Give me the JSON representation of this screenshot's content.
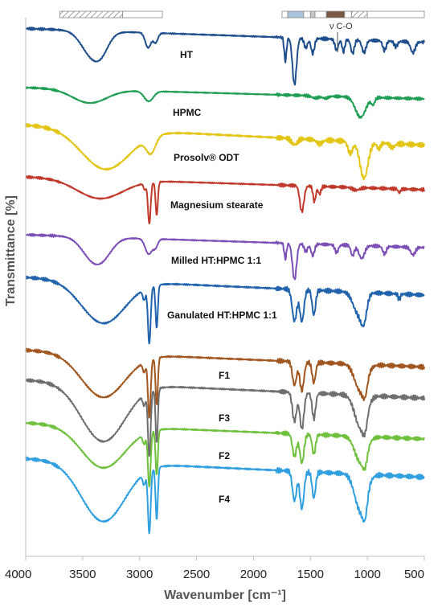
{
  "chart_data": {
    "type": "line",
    "title": "",
    "xlabel": "Wavenumber [cm⁻¹]",
    "ylabel": "Transmittance [%]",
    "xlim": [
      4000,
      500
    ],
    "x_reversed": true,
    "x_ticks": [
      "4000",
      "3500",
      "3000",
      "2500",
      "2000",
      "1500",
      "1000",
      "500"
    ],
    "grid": false,
    "legend": "labels placed next to each trace",
    "annotation": "ν C-O",
    "series": [
      {
        "name": "HT",
        "color": "#1f4e8c",
        "bands": [
          [
            3410,
            0.95,
            95
          ],
          [
            3330,
            0.3,
            60
          ],
          [
            2925,
            0.55,
            25
          ],
          [
            2860,
            0.35,
            20
          ],
          [
            1720,
            0.85,
            10
          ],
          [
            1640,
            1.7,
            18
          ],
          [
            1540,
            0.35,
            15
          ],
          [
            1480,
            0.55,
            15
          ],
          [
            1270,
            0.4,
            15
          ],
          [
            1210,
            0.45,
            12
          ],
          [
            1130,
            0.5,
            15
          ],
          [
            1030,
            0.45,
            18
          ],
          [
            850,
            0.35,
            15
          ],
          [
            750,
            0.2,
            15
          ],
          [
            600,
            0.4,
            20
          ]
        ]
      },
      {
        "name": "HPMC",
        "color": "#1e9e52",
        "bands": [
          [
            3440,
            0.6,
            150
          ],
          [
            2920,
            0.45,
            40
          ],
          [
            1460,
            0.1,
            30
          ],
          [
            1370,
            0.1,
            25
          ],
          [
            1060,
            0.9,
            45
          ],
          [
            950,
            0.3,
            15
          ]
        ]
      },
      {
        "name": "Prosolv® ODT",
        "color": "#e3c615",
        "bands": [
          [
            3300,
            1.0,
            210
          ],
          [
            2900,
            0.4,
            40
          ],
          [
            1640,
            0.15,
            25
          ],
          [
            1420,
            0.1,
            25
          ],
          [
            1150,
            0.3,
            20
          ],
          [
            1030,
            0.9,
            35
          ],
          [
            900,
            0.15,
            15
          ],
          [
            780,
            0.1,
            20
          ]
        ]
      },
      {
        "name": "Magnesium stearate",
        "color": "#c0392b",
        "bands": [
          [
            3350,
            0.75,
            200
          ],
          [
            2955,
            0.25,
            10
          ],
          [
            2915,
            1.6,
            12
          ],
          [
            2850,
            1.3,
            10
          ],
          [
            1575,
            1.0,
            18
          ],
          [
            1465,
            0.6,
            12
          ],
          [
            1420,
            0.3,
            12
          ],
          [
            1100,
            0.1,
            30
          ],
          [
            720,
            0.15,
            10
          ]
        ]
      },
      {
        "name": "Milled HT:HPMC 1:1",
        "color": "#7b4fb5",
        "bands": [
          [
            3400,
            0.9,
            100
          ],
          [
            3300,
            0.3,
            80
          ],
          [
            2920,
            0.6,
            30
          ],
          [
            2860,
            0.3,
            20
          ],
          [
            1720,
            0.6,
            10
          ],
          [
            1640,
            1.4,
            18
          ],
          [
            1540,
            0.3,
            15
          ],
          [
            1480,
            0.45,
            15
          ],
          [
            1270,
            0.3,
            15
          ],
          [
            1130,
            0.4,
            15
          ],
          [
            1050,
            0.5,
            25
          ],
          [
            850,
            0.3,
            15
          ],
          [
            600,
            0.3,
            20
          ]
        ]
      },
      {
        "name": "Ganulated HT:HPMC 1:1",
        "color": "#2062ac",
        "bands": [
          [
            3320,
            1.2,
            190
          ],
          [
            2960,
            0.3,
            12
          ],
          [
            2915,
            1.6,
            12
          ],
          [
            2850,
            1.2,
            10
          ],
          [
            1640,
            0.9,
            20
          ],
          [
            1575,
            0.9,
            18
          ],
          [
            1470,
            0.7,
            15
          ],
          [
            1080,
            0.6,
            45
          ],
          [
            1030,
            0.6,
            25
          ],
          [
            720,
            0.15,
            10
          ]
        ]
      },
      {
        "name": "F1",
        "color": "#a0561e",
        "bands": [
          [
            3320,
            1.3,
            190
          ],
          [
            2960,
            0.3,
            12
          ],
          [
            2915,
            1.7,
            12
          ],
          [
            2850,
            1.4,
            10
          ],
          [
            1640,
            0.7,
            18
          ],
          [
            1575,
            0.85,
            18
          ],
          [
            1470,
            0.6,
            15
          ],
          [
            1060,
            0.8,
            50
          ],
          [
            1020,
            0.4,
            20
          ]
        ]
      },
      {
        "name": "F3",
        "color": "#6e6e6e",
        "bands": [
          [
            3320,
            1.6,
            190
          ],
          [
            2960,
            0.3,
            12
          ],
          [
            2915,
            1.8,
            12
          ],
          [
            2850,
            1.5,
            10
          ],
          [
            1640,
            0.8,
            18
          ],
          [
            1575,
            1.0,
            18
          ],
          [
            1470,
            0.7,
            15
          ],
          [
            1060,
            0.9,
            50
          ],
          [
            1020,
            0.4,
            20
          ]
        ]
      },
      {
        "name": "F2",
        "color": "#6fc03c",
        "bands": [
          [
            3320,
            1.3,
            190
          ],
          [
            2960,
            0.3,
            12
          ],
          [
            2915,
            1.7,
            12
          ],
          [
            2850,
            1.4,
            10
          ],
          [
            1640,
            0.7,
            18
          ],
          [
            1575,
            0.9,
            18
          ],
          [
            1470,
            0.6,
            15
          ],
          [
            1060,
            0.8,
            50
          ],
          [
            1020,
            0.4,
            20
          ]
        ]
      },
      {
        "name": "F4",
        "color": "#2f9fe0",
        "bands": [
          [
            3320,
            1.6,
            190
          ],
          [
            2960,
            0.3,
            12
          ],
          [
            2915,
            1.7,
            12
          ],
          [
            2850,
            1.4,
            10
          ],
          [
            1640,
            0.8,
            18
          ],
          [
            1575,
            1.0,
            18
          ],
          [
            1470,
            0.7,
            15
          ],
          [
            1060,
            1.0,
            50
          ],
          [
            1020,
            0.5,
            20
          ]
        ]
      }
    ],
    "top_bars": [
      {
        "start": 3700,
        "end": 2800,
        "segments": [
          {
            "from": 3700,
            "to": 3150,
            "fill": "hatched"
          },
          {
            "from": 3150,
            "to": 2800,
            "fill": "#ffffff"
          }
        ]
      },
      {
        "start": 1750,
        "end": 500,
        "segments": [
          {
            "from": 1750,
            "to": 1700,
            "fill": "#ffffff"
          },
          {
            "from": 1700,
            "to": 1560,
            "fill": "#a9c4dc"
          },
          {
            "from": 1560,
            "to": 1500,
            "fill": "#ffffff"
          },
          {
            "from": 1500,
            "to": 1460,
            "fill": "#c8c8c8"
          },
          {
            "from": 1460,
            "to": 1360,
            "fill": "#ffffff"
          },
          {
            "from": 1360,
            "to": 1200,
            "fill": "#7a5a45"
          },
          {
            "from": 1200,
            "to": 1140,
            "fill": "#ffffff"
          },
          {
            "from": 1140,
            "to": 1000,
            "fill": "hatched"
          },
          {
            "from": 1000,
            "to": 500,
            "fill": "#ffffff"
          }
        ]
      }
    ]
  }
}
